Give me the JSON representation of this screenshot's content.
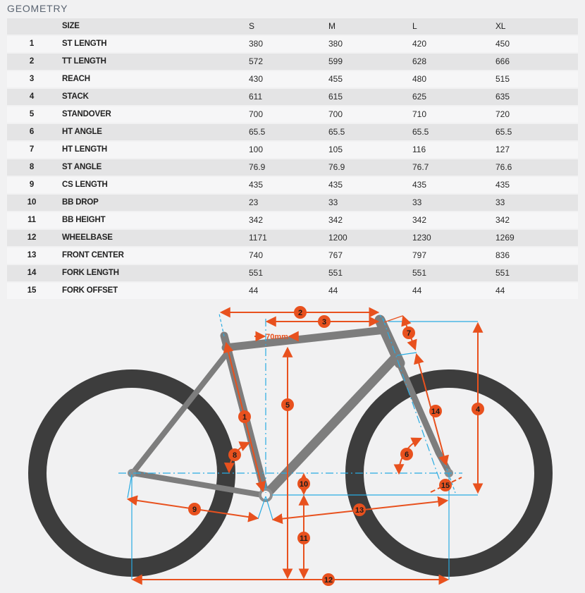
{
  "page": {
    "title": "GEOMETRY"
  },
  "colors": {
    "accent_orange": "#e8511e",
    "helper_blue": "#29abe2",
    "frame_gray": "#7d7d7d",
    "wheel_dark": "#3d3d3d",
    "row_light": "#f6f6f7",
    "row_dark": "#e4e4e5"
  },
  "table": {
    "columns": [
      "",
      "SIZE",
      "S",
      "M",
      "L",
      "XL"
    ],
    "rows": [
      {
        "num": "1",
        "label": "ST LENGTH",
        "values": [
          "380",
          "380",
          "420",
          "450"
        ]
      },
      {
        "num": "2",
        "label": "TT LENGTH",
        "values": [
          "572",
          "599",
          "628",
          "666"
        ]
      },
      {
        "num": "3",
        "label": "REACH",
        "values": [
          "430",
          "455",
          "480",
          "515"
        ]
      },
      {
        "num": "4",
        "label": "STACK",
        "values": [
          "611",
          "615",
          "625",
          "635"
        ]
      },
      {
        "num": "5",
        "label": "STANDOVER",
        "values": [
          "700",
          "700",
          "710",
          "720"
        ]
      },
      {
        "num": "6",
        "label": "HT ANGLE",
        "values": [
          "65.5",
          "65.5",
          "65.5",
          "65.5"
        ]
      },
      {
        "num": "7",
        "label": "HT LENGTH",
        "values": [
          "100",
          "105",
          "116",
          "127"
        ]
      },
      {
        "num": "8",
        "label": "ST ANGLE",
        "values": [
          "76.9",
          "76.9",
          "76.7",
          "76.6"
        ]
      },
      {
        "num": "9",
        "label": "CS LENGTH",
        "values": [
          "435",
          "435",
          "435",
          "435"
        ]
      },
      {
        "num": "10",
        "label": "BB DROP",
        "values": [
          "23",
          "33",
          "33",
          "33"
        ]
      },
      {
        "num": "11",
        "label": "BB HEIGHT",
        "values": [
          "342",
          "342",
          "342",
          "342"
        ]
      },
      {
        "num": "12",
        "label": "WHEELBASE",
        "values": [
          "1171",
          "1200",
          "1230",
          "1269"
        ]
      },
      {
        "num": "13",
        "label": "FRONT CENTER",
        "values": [
          "740",
          "767",
          "797",
          "836"
        ]
      },
      {
        "num": "14",
        "label": "FORK LENGTH",
        "values": [
          "551",
          "551",
          "551",
          "551"
        ]
      },
      {
        "num": "15",
        "label": "FORK OFFSET",
        "values": [
          "44",
          "44",
          "44",
          "44"
        ]
      }
    ]
  },
  "diagram": {
    "annotation_70mm": "70mm",
    "badges": [
      {
        "number": "1",
        "measure": "ST LENGTH"
      },
      {
        "number": "2",
        "measure": "TT LENGTH"
      },
      {
        "number": "3",
        "measure": "REACH"
      },
      {
        "number": "4",
        "measure": "STACK"
      },
      {
        "number": "5",
        "measure": "STANDOVER"
      },
      {
        "number": "6",
        "measure": "HT ANGLE"
      },
      {
        "number": "7",
        "measure": "HT LENGTH"
      },
      {
        "number": "8",
        "measure": "ST ANGLE"
      },
      {
        "number": "9",
        "measure": "CS LENGTH"
      },
      {
        "number": "10",
        "measure": "BB DROP"
      },
      {
        "number": "11",
        "measure": "BB HEIGHT"
      },
      {
        "number": "12",
        "measure": "WHEELBASE"
      },
      {
        "number": "13",
        "measure": "FRONT CENTER"
      },
      {
        "number": "14",
        "measure": "FORK LENGTH"
      },
      {
        "number": "15",
        "measure": "FORK OFFSET"
      }
    ]
  }
}
